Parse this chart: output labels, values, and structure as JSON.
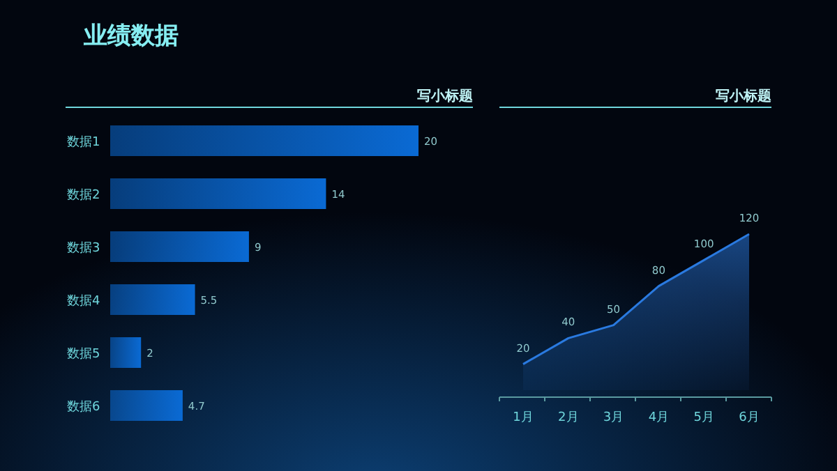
{
  "chart_data": [
    {
      "type": "other",
      "title": "业绩数据"
    },
    {
      "type": "bar",
      "title": "写小标题",
      "orientation": "horizontal",
      "data_labels": true,
      "color": "#0a6ad4",
      "categories": [
        "数据1",
        "数据2",
        "数据3",
        "数据4",
        "数据5",
        "数据6"
      ],
      "values": [
        20,
        14,
        9,
        5.5,
        2,
        4.7
      ]
    },
    {
      "type": "area",
      "title": "写小标题",
      "data_labels": true,
      "color": "#2a7ae0",
      "categories": [
        "1月",
        "2月",
        "3月",
        "4月",
        "5月",
        "6月"
      ],
      "values": [
        20,
        40,
        50,
        80,
        100,
        120
      ]
    }
  ]
}
